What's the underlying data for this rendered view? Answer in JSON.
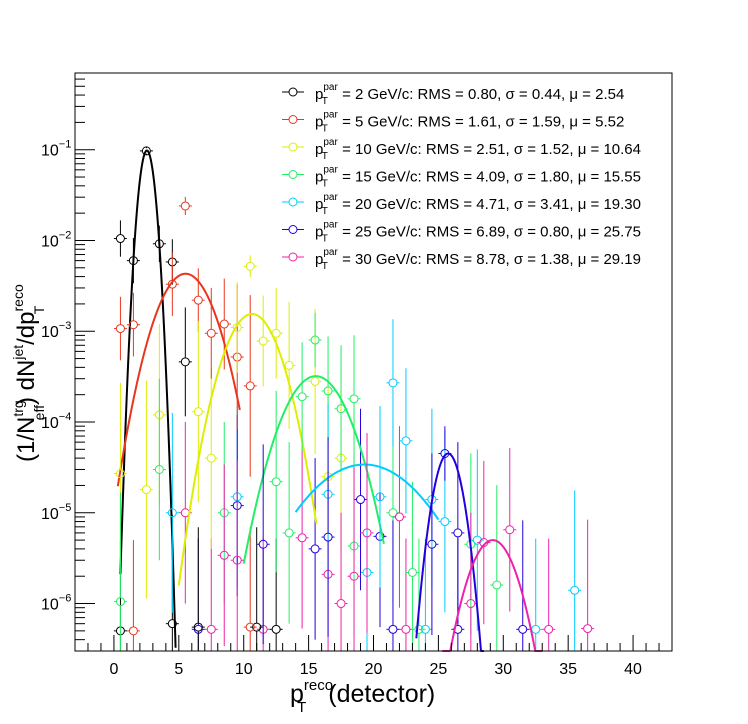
{
  "chart_data": {
    "type": "scatter",
    "xlabel_main": "p",
    "xlabel_sup": "reco",
    "xlabel_sub": "T",
    "xlabel_tail": "(detector)",
    "ylabel": {
      "p1": "(1/N",
      "p1_sup": "trg",
      "p1_sub": "eff",
      "p2": ") dN",
      "p2_sup": "jet",
      "p3": "/dp",
      "p3_sup": "reco",
      "p3_sub": "T"
    },
    "xlim": [
      -3,
      43
    ],
    "ylim": [
      3e-07,
      0.7
    ],
    "yscale": "log",
    "x_ticks": [
      0,
      5,
      10,
      15,
      20,
      25,
      30,
      35,
      40
    ],
    "x_tick_labels": [
      "0",
      "5",
      "10",
      "15",
      "20",
      "25",
      "30",
      "35",
      "40"
    ],
    "y_ticks": [
      1e-06,
      1e-05,
      0.0001,
      0.001,
      0.01,
      0.1
    ],
    "y_tick_labels": [
      {
        "base": "10",
        "exp": "−6"
      },
      {
        "base": "10",
        "exp": "−5"
      },
      {
        "base": "10",
        "exp": "−4"
      },
      {
        "base": "10",
        "exp": "−3"
      },
      {
        "base": "10",
        "exp": "−2"
      },
      {
        "base": "10",
        "exp": "−1"
      }
    ],
    "grid": false,
    "legend_position": "top-right",
    "series": [
      {
        "label_p": "p",
        "label_sup": "par",
        "label_sub": "T",
        "label_rest": " = 2 GeV/c: RMS = 0.80, σ = 0.44, μ = 2.54",
        "color": "#000000",
        "fit": {
          "amp": 0.098,
          "mu": 2.54,
          "sigma": 0.44,
          "xmin": 0.5,
          "xmax": 4.75
        },
        "points": [
          {
            "x": 0.5,
            "y": 0.0105,
            "err": 0.2
          },
          {
            "x": 1.5,
            "y": 0.006,
            "err": 0.25
          },
          {
            "x": 2.5,
            "y": 0.097,
            "err": 0.03
          },
          {
            "x": 3.5,
            "y": 0.0092,
            "err": 0.2
          },
          {
            "x": 4.5,
            "y": 0.0058,
            "err": 0.25
          },
          {
            "x": 5.5,
            "y": 0.00046,
            "err": 0.6
          },
          {
            "x": 4.5,
            "y": 6e-07,
            "err": 1.2
          },
          {
            "x": 6.5,
            "y": 5.5e-07,
            "err": 1.1
          },
          {
            "x": 11.0,
            "y": 5.5e-07,
            "err": 1.1
          }
        ]
      },
      {
        "label_p": "p",
        "label_sup": "par",
        "label_sub": "T",
        "label_rest": " = 5 GeV/c: RMS = 1.61, σ = 1.59, μ = 5.52",
        "color": "#e8361e",
        "fit": {
          "amp": 0.0043,
          "mu": 5.52,
          "sigma": 1.59,
          "xmin": 0.3,
          "xmax": 9.7
        },
        "points": [
          {
            "x": 0.5,
            "y": 0.00107,
            "err": 0.35
          },
          {
            "x": 1.5,
            "y": 0.00118,
            "err": 0.35
          },
          {
            "x": 5.5,
            "y": 0.024,
            "err": 0.1
          },
          {
            "x": 4.5,
            "y": 0.0033,
            "err": 0.35
          },
          {
            "x": 6.5,
            "y": 0.0022,
            "err": 0.35
          },
          {
            "x": 7.5,
            "y": 0.00095,
            "err": 0.5
          },
          {
            "x": 8.5,
            "y": 0.0012,
            "err": 0.5
          },
          {
            "x": 9.5,
            "y": 0.00052,
            "err": 0.8
          },
          {
            "x": 10.5,
            "y": 0.00025,
            "err": 1.0
          },
          {
            "x": 10.5,
            "y": 5.5e-07,
            "err": 1.1
          }
        ]
      },
      {
        "label_p": "p",
        "label_sup": "par",
        "label_sub": "T",
        "label_rest": " = 10 GeV/c: RMS = 2.51, σ = 1.52, μ = 10.64",
        "color": "#ddee00",
        "fit": {
          "amp": 0.00155,
          "mu": 10.64,
          "sigma": 1.52,
          "xmin": 5.0,
          "xmax": 15.6
        },
        "points": [
          {
            "x": 0.5,
            "y": 2.7e-05,
            "err": 1.0
          },
          {
            "x": 3.5,
            "y": 0.00012,
            "err": 1.0
          },
          {
            "x": 10.5,
            "y": 0.0052,
            "err": 0.12
          },
          {
            "x": 9.5,
            "y": 0.0011,
            "err": 0.5
          },
          {
            "x": 11.5,
            "y": 0.00078,
            "err": 0.5
          },
          {
            "x": 12.5,
            "y": 0.00095,
            "err": 0.5
          },
          {
            "x": 13.5,
            "y": 0.00042,
            "err": 0.7
          },
          {
            "x": 15.5,
            "y": 0.00028,
            "err": 0.8
          },
          {
            "x": 16.5,
            "y": 2.5e-05,
            "err": 1.0
          },
          {
            "x": 6.5,
            "y": 0.00013,
            "err": 1.0
          },
          {
            "x": 2.5,
            "y": 1.8e-05,
            "err": 1.2
          }
        ]
      },
      {
        "label_p": "p",
        "label_sup": "par",
        "label_sub": "T",
        "label_rest": " = 15 GeV/c: RMS = 4.09, σ = 1.80, μ = 15.55",
        "color": "#22ee66",
        "fit": {
          "amp": 0.00032,
          "mu": 15.55,
          "sigma": 1.8,
          "xmin": 10.0,
          "xmax": 20.8
        },
        "points": [
          {
            "x": 0.5,
            "y": 1.05e-06,
            "err": 1.2
          },
          {
            "x": 15.5,
            "y": 0.0008,
            "err": 0.3
          },
          {
            "x": 14.5,
            "y": 0.00019,
            "err": 0.6
          },
          {
            "x": 16.5,
            "y": 0.00022,
            "err": 0.6
          },
          {
            "x": 17.5,
            "y": 0.00014,
            "err": 0.7
          },
          {
            "x": 18.5,
            "y": 0.00018,
            "err": 0.7
          },
          {
            "x": 12.5,
            "y": 2.2e-05,
            "err": 1.0
          },
          {
            "x": 3.5,
            "y": 3e-05,
            "err": 1.0
          },
          {
            "x": 29.5,
            "y": 1.6e-06,
            "err": 1.1
          }
        ]
      },
      {
        "label_p": "p",
        "label_sup": "par",
        "label_sub": "T",
        "label_rest": " = 20 GeV/c: RMS = 4.71, σ = 3.41, μ = 19.30",
        "color": "#00ccff",
        "fit": {
          "amp": 3.4e-05,
          "mu": 19.3,
          "sigma": 3.41,
          "xmin": 14.0,
          "xmax": 25.0
        },
        "points": [
          {
            "x": 21.5,
            "y": 0.00027,
            "err": 0.7
          },
          {
            "x": 22.5,
            "y": 6.2e-05,
            "err": 0.8
          },
          {
            "x": 20.5,
            "y": 1.5e-05,
            "err": 1.0
          },
          {
            "x": 24.5,
            "y": 1.4e-05,
            "err": 1.0
          },
          {
            "x": 25.5,
            "y": 8e-06,
            "err": 1.0
          },
          {
            "x": 16.5,
            "y": 1.6e-05,
            "err": 1.0
          },
          {
            "x": 35.5,
            "y": 1.4e-06,
            "err": 1.1
          },
          {
            "x": 4.5,
            "y": 1e-05,
            "err": 1.1
          }
        ]
      },
      {
        "label_p": "p",
        "label_sup": "par",
        "label_sub": "T",
        "label_rest": " = 25 GeV/c: RMS = 6.89, σ = 0.80, μ = 25.75",
        "color": "#2200dd",
        "fit": {
          "amp": 4.5e-05,
          "mu": 25.75,
          "sigma": 0.8,
          "xmin": 23.3,
          "xmax": 28.5
        },
        "points": [
          {
            "x": 25.5,
            "y": 4.5e-05,
            "err": 0.3
          },
          {
            "x": 24.5,
            "y": 4.5e-06,
            "err": 1.0
          },
          {
            "x": 26.5,
            "y": 6e-06,
            "err": 1.0
          },
          {
            "x": 21.5,
            "y": 5.2e-07,
            "err": 1.2
          },
          {
            "x": 31.5,
            "y": 5.2e-07,
            "err": 1.2
          },
          {
            "x": 11.5,
            "y": 4.5e-06,
            "err": 1.1
          },
          {
            "x": 16.5,
            "y": 5.4e-06,
            "err": 1.1
          }
        ]
      },
      {
        "label_p": "p",
        "label_sup": "par",
        "label_sub": "T",
        "label_rest": " = 30 GeV/c: RMS = 8.78, σ = 1.38, μ = 29.19",
        "color": "#ee22aa",
        "fit": {
          "amp": 5e-06,
          "mu": 29.19,
          "sigma": 1.38,
          "xmin": 25.3,
          "xmax": 33.0
        },
        "points": [
          {
            "x": 30.5,
            "y": 6.5e-06,
            "err": 0.9
          },
          {
            "x": 28.5,
            "y": 4.7e-06,
            "err": 0.9
          },
          {
            "x": 36.5,
            "y": 5.3e-07,
            "err": 1.2
          },
          {
            "x": 18.5,
            "y": 2e-06,
            "err": 1.2
          },
          {
            "x": 19.5,
            "y": 6e-06,
            "err": 1.1
          },
          {
            "x": 9.5,
            "y": 3e-06,
            "err": 1.1
          }
        ]
      }
    ],
    "background_points": [
      {
        "x": 0.5,
        "y": 5e-07,
        "color": "#000000"
      },
      {
        "x": 1.5,
        "y": 5e-07,
        "color": "#e8361e"
      },
      {
        "x": 6.5,
        "y": 5.2e-07,
        "color": "#2200dd"
      },
      {
        "x": 7.5,
        "y": 5.2e-07,
        "color": "#ee22aa"
      },
      {
        "x": 8.5,
        "y": 1e-05,
        "color": "#22ee66"
      },
      {
        "x": 9.5,
        "y": 1.5e-05,
        "color": "#00ccff"
      },
      {
        "x": 7.5,
        "y": 4e-05,
        "color": "#ddee00"
      },
      {
        "x": 8.5,
        "y": 3.4e-06,
        "color": "#ee22aa"
      },
      {
        "x": 9.5,
        "y": 1.2e-05,
        "color": "#2200dd"
      },
      {
        "x": 11.5,
        "y": 5.2e-07,
        "color": "#ee22aa"
      },
      {
        "x": 12.5,
        "y": 5.2e-07,
        "color": "#000000"
      },
      {
        "x": 13.5,
        "y": 6e-06,
        "color": "#22ee66"
      },
      {
        "x": 14.5,
        "y": 5.3e-06,
        "color": "#ee22aa"
      },
      {
        "x": 15.5,
        "y": 4e-06,
        "color": "#2200dd"
      },
      {
        "x": 16.5,
        "y": 2.1e-06,
        "color": "#ee22aa"
      },
      {
        "x": 17.5,
        "y": 4e-05,
        "color": "#ddee00"
      },
      {
        "x": 17.5,
        "y": 1e-06,
        "color": "#ee22aa"
      },
      {
        "x": 18.5,
        "y": 4.3e-06,
        "color": "#22ee66"
      },
      {
        "x": 19.5,
        "y": 2.2e-06,
        "color": "#00ccff"
      },
      {
        "x": 20.5,
        "y": 5.5e-06,
        "color": "#2200dd"
      },
      {
        "x": 21.5,
        "y": 1e-05,
        "color": "#22ee66"
      },
      {
        "x": 22.5,
        "y": 5.2e-07,
        "color": "#ee22aa"
      },
      {
        "x": 23.5,
        "y": 5.2e-07,
        "color": "#22ee66"
      },
      {
        "x": 26.5,
        "y": 5.2e-07,
        "color": "#2200dd"
      },
      {
        "x": 27.5,
        "y": 4.5e-06,
        "color": "#22ee66"
      },
      {
        "x": 27.5,
        "y": 1e-06,
        "color": "#ee22aa"
      },
      {
        "x": 32.5,
        "y": 5.2e-07,
        "color": "#00ccff"
      },
      {
        "x": 33.5,
        "y": 5.2e-07,
        "color": "#ee22aa"
      },
      {
        "x": 19.0,
        "y": 1.4e-05,
        "color": "#2200dd"
      },
      {
        "x": 22.0,
        "y": 9e-06,
        "color": "#ee22aa"
      },
      {
        "x": 5.5,
        "y": 1e-05,
        "color": "#ee22aa"
      },
      {
        "x": 23.0,
        "y": 2.2e-06,
        "color": "#22ee66"
      },
      {
        "x": 24.0,
        "y": 5.2e-07,
        "color": "#00ccff"
      },
      {
        "x": 28.0,
        "y": 5e-06,
        "color": "#00ccff"
      }
    ]
  }
}
